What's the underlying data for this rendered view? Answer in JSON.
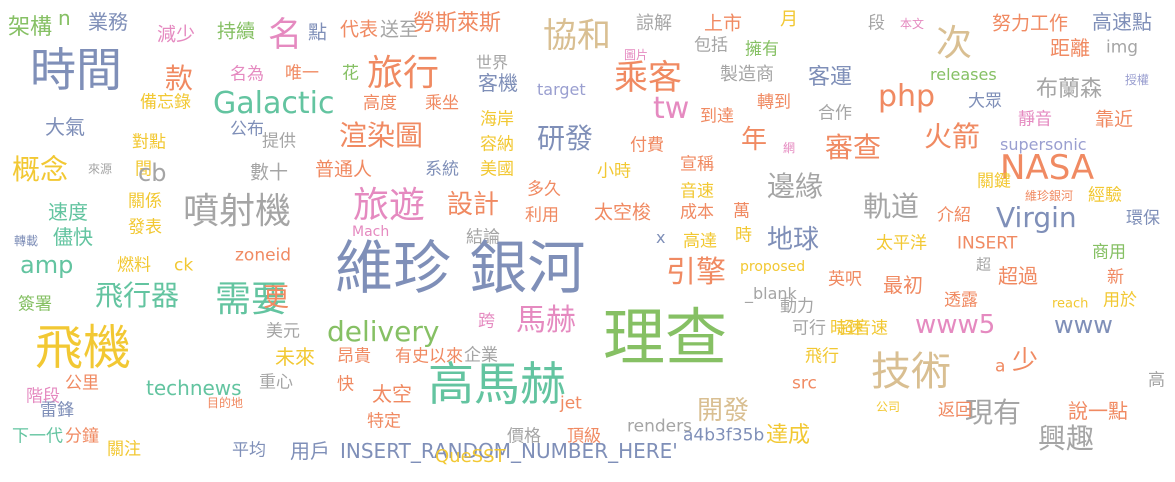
{
  "palette": {
    "blue": "#7f8fb8",
    "green": "#86c064",
    "teal": "#63c4a0",
    "orange": "#f08a62",
    "pink": "#e58ac0",
    "yellow": "#f2c833",
    "tan": "#d9bf92",
    "gray": "#a5a5a5",
    "purple": "#9a9fd0",
    "lime": "#b5d65e"
  },
  "words": [
    "架構",
    "n",
    "業務",
    "減少",
    "持續",
    "名",
    "點",
    "代表",
    "送至",
    "勞斯萊斯",
    "協和",
    "諒解",
    "上市",
    "月",
    "段",
    "本文",
    "努力工作",
    "高速點",
    "時間",
    "款",
    "名為",
    "唯一",
    "花",
    "旅行",
    "世界",
    "圖片",
    "包括",
    "擁有",
    "次",
    "距離",
    "img",
    "乘客",
    "製造商",
    "客運",
    "php",
    "releases",
    "布蘭森",
    "授權",
    "Galactic",
    "高度",
    "乘坐",
    "客機",
    "target",
    "轉到",
    "大眾",
    "備忘錄",
    "大氣",
    "公布",
    "提供",
    "渲染圖",
    "研發",
    "海岸",
    "容納",
    "合作",
    "靜音",
    "靠近",
    "tw",
    "到達",
    "年",
    "火箭",
    "審查",
    "對點",
    "網",
    "supersonic",
    "概念",
    "來源",
    "間",
    "數十",
    "普通人",
    "系統",
    "美國",
    "付費",
    "小時",
    "宣稱",
    "NASA",
    "cb",
    "噴射機",
    "旅遊",
    "設計",
    "多久",
    "太空梭",
    "成本",
    "萬",
    "邊緣",
    "軌道",
    "關鍵",
    "維珍銀河",
    "經驗",
    "速度",
    "關係",
    "發表",
    "利用",
    "音速",
    "介紹",
    "Virgin",
    "環保",
    "轉載",
    "儘快",
    "Mach",
    "結論",
    "x",
    "高達",
    "時",
    "地球",
    "INSERT",
    "商用",
    "amp",
    "zoneid",
    "燃料",
    "ck",
    "太平洋",
    "維珍 銀河",
    "引擎",
    "proposed",
    "超",
    "新",
    "飛行器",
    "需要",
    "英呎",
    "最初",
    "超過",
    "簽署",
    "更",
    "_blank",
    "動力",
    "透露",
    "用於",
    "reach",
    "delivery",
    "跨",
    "馬赫",
    "www5",
    "www",
    "美元",
    "可行",
    "時速",
    "超音速",
    "飛機",
    "理查",
    "未來",
    "昂貴",
    "有史以來",
    "企業",
    "飛行",
    "技術",
    "少",
    "重心",
    "a",
    "高",
    "快",
    "太空",
    "高馬赫",
    "src",
    "階段",
    "公里",
    "technews",
    "開發",
    "現有",
    "說一點",
    "雷鋒",
    "目的地",
    "jet",
    "公司",
    "返回",
    "下一代",
    "分鐘",
    "特定",
    "價格",
    "頂級",
    "renders",
    "a4b3f35b",
    "達成",
    "興趣",
    "關注",
    "平均",
    "用戶",
    "INSERT_RANDOM_NUMBER_HERE'",
    "QueSST"
  ]
}
